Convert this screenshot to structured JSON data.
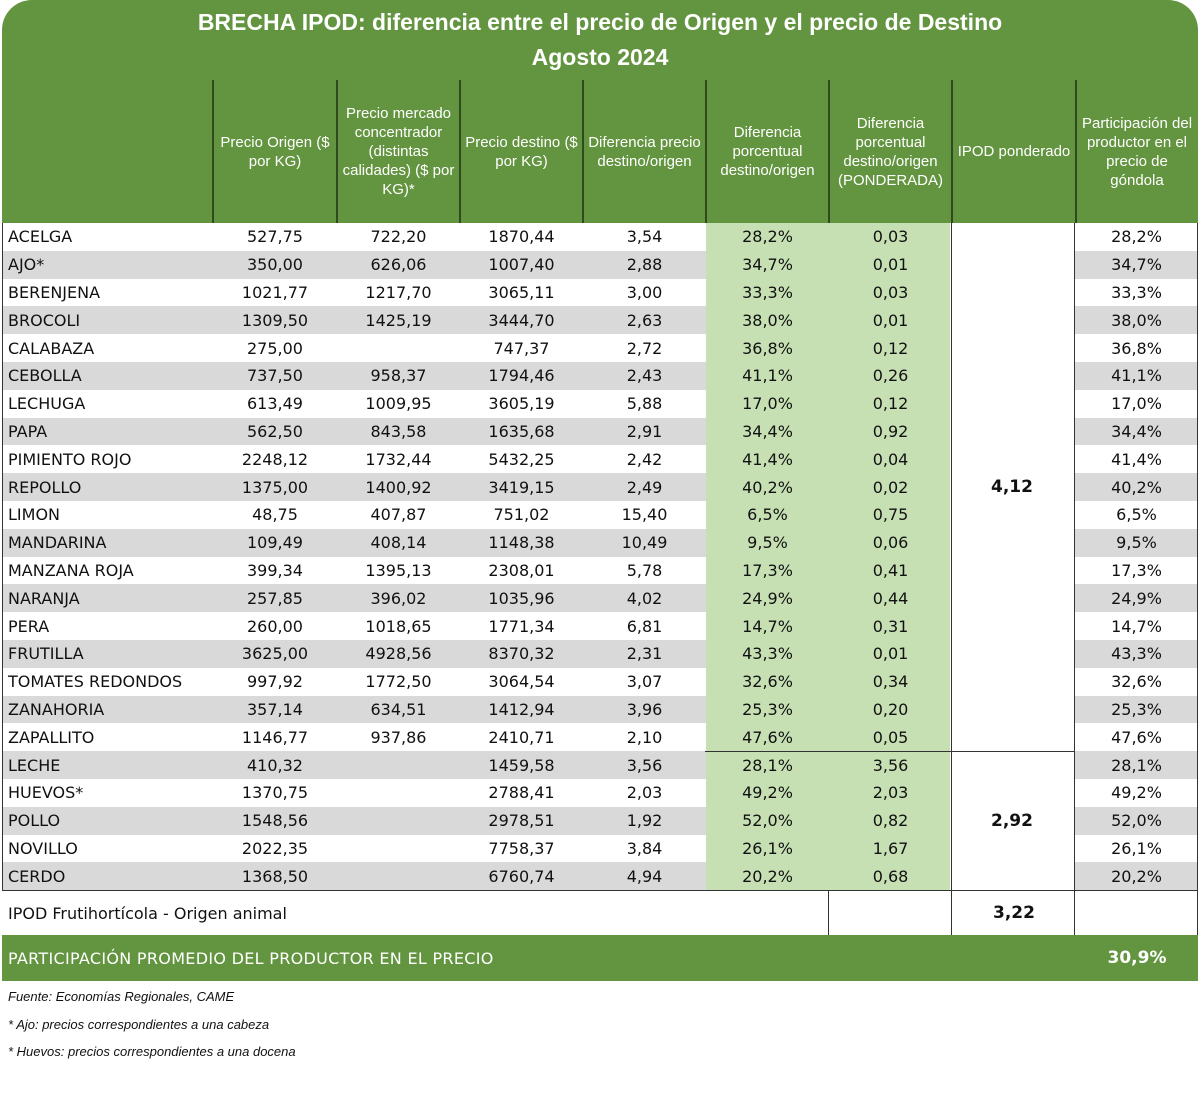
{
  "title": {
    "line1": "BRECHA IPOD: diferencia entre el precio de Origen y el precio de Destino",
    "line2": "Agosto 2024"
  },
  "columns": [
    "",
    "Precio Origen ($ por KG)",
    "Precio mercado concentrador (distintas calidades) ($ por KG)*",
    "Precio destino ($ por KG)",
    "Diferencia precio destino/origen",
    "Diferencia porcentual destino/origen",
    "Diferencia porcentual destino/origen (PONDERADA)",
    "IPOD ponderado",
    "Participación del productor en el precio de góndola"
  ],
  "rows": [
    {
      "producto": "ACELGA",
      "origen": "527,75",
      "mercado": "722,20",
      "destino": "1870,44",
      "dif": "3,54",
      "difpct": "28,2%",
      "pond": "0,03",
      "part": "28,2%"
    },
    {
      "producto": "AJO*",
      "origen": "350,00",
      "mercado": "626,06",
      "destino": "1007,40",
      "dif": "2,88",
      "difpct": "34,7%",
      "pond": "0,01",
      "part": "34,7%"
    },
    {
      "producto": "BERENJENA",
      "origen": "1021,77",
      "mercado": "1217,70",
      "destino": "3065,11",
      "dif": "3,00",
      "difpct": "33,3%",
      "pond": "0,03",
      "part": "33,3%"
    },
    {
      "producto": "BROCOLI",
      "origen": "1309,50",
      "mercado": "1425,19",
      "destino": "3444,70",
      "dif": "2,63",
      "difpct": "38,0%",
      "pond": "0,01",
      "part": "38,0%"
    },
    {
      "producto": "CALABAZA",
      "origen": "275,00",
      "mercado": "",
      "destino": "747,37",
      "dif": "2,72",
      "difpct": "36,8%",
      "pond": "0,12",
      "part": "36,8%"
    },
    {
      "producto": "CEBOLLA",
      "origen": "737,50",
      "mercado": "958,37",
      "destino": "1794,46",
      "dif": "2,43",
      "difpct": "41,1%",
      "pond": "0,26",
      "part": "41,1%"
    },
    {
      "producto": "LECHUGA",
      "origen": "613,49",
      "mercado": "1009,95",
      "destino": "3605,19",
      "dif": "5,88",
      "difpct": "17,0%",
      "pond": "0,12",
      "part": "17,0%"
    },
    {
      "producto": "PAPA",
      "origen": "562,50",
      "mercado": "843,58",
      "destino": "1635,68",
      "dif": "2,91",
      "difpct": "34,4%",
      "pond": "0,92",
      "part": "34,4%"
    },
    {
      "producto": "PIMIENTO ROJO",
      "origen": "2248,12",
      "mercado": "1732,44",
      "destino": "5432,25",
      "dif": "2,42",
      "difpct": "41,4%",
      "pond": "0,04",
      "part": "41,4%"
    },
    {
      "producto": "REPOLLO",
      "origen": "1375,00",
      "mercado": "1400,92",
      "destino": "3419,15",
      "dif": "2,49",
      "difpct": "40,2%",
      "pond": "0,02",
      "part": "40,2%"
    },
    {
      "producto": "LIMON",
      "origen": "48,75",
      "mercado": "407,87",
      "destino": "751,02",
      "dif": "15,40",
      "difpct": "6,5%",
      "pond": "0,75",
      "part": "6,5%"
    },
    {
      "producto": "MANDARINA",
      "origen": "109,49",
      "mercado": "408,14",
      "destino": "1148,38",
      "dif": "10,49",
      "difpct": "9,5%",
      "pond": "0,06",
      "part": "9,5%"
    },
    {
      "producto": "MANZANA ROJA",
      "origen": "399,34",
      "mercado": "1395,13",
      "destino": "2308,01",
      "dif": "5,78",
      "difpct": "17,3%",
      "pond": "0,41",
      "part": "17,3%"
    },
    {
      "producto": "NARANJA",
      "origen": "257,85",
      "mercado": "396,02",
      "destino": "1035,96",
      "dif": "4,02",
      "difpct": "24,9%",
      "pond": "0,44",
      "part": "24,9%"
    },
    {
      "producto": "PERA",
      "origen": "260,00",
      "mercado": "1018,65",
      "destino": "1771,34",
      "dif": "6,81",
      "difpct": "14,7%",
      "pond": "0,31",
      "part": "14,7%"
    },
    {
      "producto": "FRUTILLA",
      "origen": "3625,00",
      "mercado": "4928,56",
      "destino": "8370,32",
      "dif": "2,31",
      "difpct": "43,3%",
      "pond": "0,01",
      "part": "43,3%"
    },
    {
      "producto": "TOMATES REDONDOS",
      "origen": "997,92",
      "mercado": "1772,50",
      "destino": "3064,54",
      "dif": "3,07",
      "difpct": "32,6%",
      "pond": "0,34",
      "part": "32,6%"
    },
    {
      "producto": "ZANAHORIA",
      "origen": "357,14",
      "mercado": "634,51",
      "destino": "1412,94",
      "dif": "3,96",
      "difpct": "25,3%",
      "pond": "0,20",
      "part": "25,3%"
    },
    {
      "producto": "ZAPALLITO",
      "origen": "1146,77",
      "mercado": "937,86",
      "destino": "2410,71",
      "dif": "2,10",
      "difpct": "47,6%",
      "pond": "0,05",
      "part": "47,6%"
    },
    {
      "producto": "LECHE",
      "origen": "410,32",
      "mercado": "",
      "destino": "1459,58",
      "dif": "3,56",
      "difpct": "28,1%",
      "pond": "3,56",
      "part": "28,1%"
    },
    {
      "producto": "HUEVOS*",
      "origen": "1370,75",
      "mercado": "",
      "destino": "2788,41",
      "dif": "2,03",
      "difpct": "49,2%",
      "pond": "2,03",
      "part": "49,2%"
    },
    {
      "producto": "POLLO",
      "origen": "1548,56",
      "mercado": "",
      "destino": "2978,51",
      "dif": "1,92",
      "difpct": "52,0%",
      "pond": "0,82",
      "part": "52,0%"
    },
    {
      "producto": "NOVILLO",
      "origen": "2022,35",
      "mercado": "",
      "destino": "7758,37",
      "dif": "3,84",
      "difpct": "26,1%",
      "pond": "1,67",
      "part": "26,1%"
    },
    {
      "producto": "CERDO",
      "origen": "1368,50",
      "mercado": "",
      "destino": "6760,74",
      "dif": "4,94",
      "difpct": "20,2%",
      "pond": "0,68",
      "part": "20,2%"
    }
  ],
  "ipod_groups": {
    "frutihorticola": "4,12",
    "animal": "2,92"
  },
  "total_row": {
    "label": "IPOD Frutihortícola - Origen animal",
    "value": "3,22"
  },
  "average_row": {
    "label": "PARTICIPACIÓN PROMEDIO DEL PRODUCTOR EN EL PRECIO",
    "value": "30,9%"
  },
  "notes": [
    "Fuente: Economías Regionales, CAME",
    "* Ajo: precios correspondientes a una cabeza",
    "* Huevos: precios correspondientes a una docena"
  ],
  "colors": {
    "header_green": "#63943f",
    "light_green": "#c6e0b4",
    "alt_gray": "#d9d9d9"
  }
}
